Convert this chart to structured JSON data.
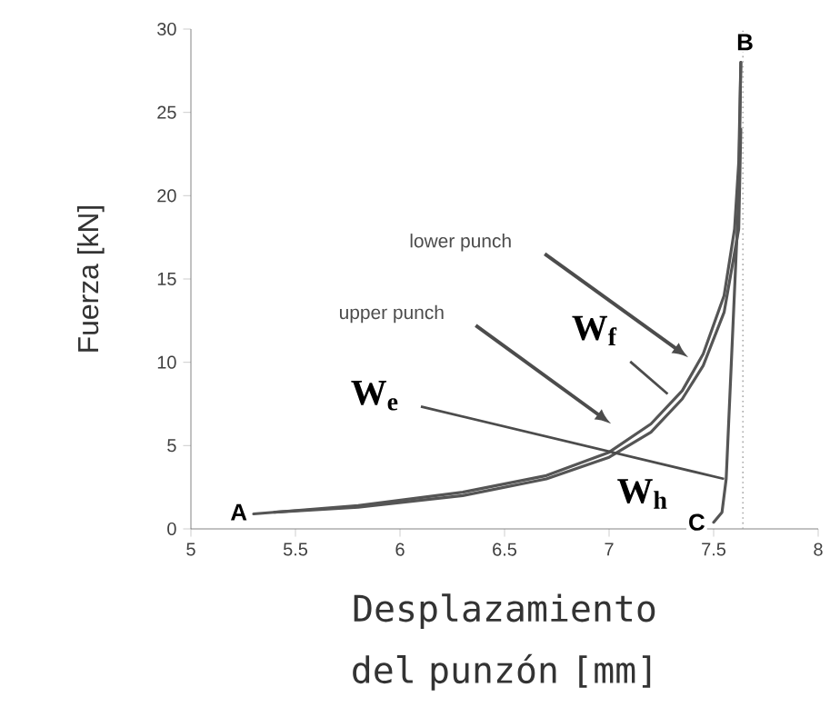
{
  "chart_data": {
    "type": "line",
    "xlabel": "Desplazamiento del punzón [mm]",
    "ylabel": "Fuerza [kN]",
    "xlim": [
      5,
      8
    ],
    "ylim": [
      0,
      30
    ],
    "xticks": [
      5,
      5.5,
      6,
      6.5,
      7,
      7.5,
      8
    ],
    "yticks": [
      0,
      5,
      10,
      15,
      20,
      25,
      30
    ],
    "grid": false,
    "line_style": "solid",
    "marker": "none",
    "series": [
      {
        "color": "#555555",
        "x": [
          5.3,
          5.8,
          6.3,
          6.7,
          7.0,
          7.2,
          7.35,
          7.45,
          7.55,
          7.6,
          7.62,
          7.63
        ],
        "values": [
          0.9,
          1.4,
          2.2,
          3.2,
          4.6,
          6.3,
          8.3,
          10.5,
          14,
          18,
          22,
          28
        ]
      },
      {
        "color": "#555555",
        "x": [
          5.4,
          5.8,
          6.3,
          6.7,
          7.0,
          7.2,
          7.35,
          7.45,
          7.55,
          7.62,
          7.63
        ],
        "values": [
          1,
          1.3,
          2.0,
          3.0,
          4.3,
          5.8,
          7.8,
          9.8,
          13,
          18,
          24
        ]
      },
      {
        "color": "#555555",
        "x": [
          7.63,
          7.62,
          7.56,
          7.54,
          7.5
        ],
        "values": [
          28,
          20,
          3,
          1,
          0.4
        ]
      }
    ],
    "ref_lines": [
      {
        "axis": "x",
        "value": 7.64,
        "color": "#aaaaaa",
        "line_style": "dotted"
      }
    ],
    "annotations": [
      {
        "text": "A",
        "x": 5.3,
        "y": 1
      },
      {
        "text": "B",
        "x": 7.63,
        "y": 28
      },
      {
        "text": "C",
        "x": 7.5,
        "y": 0.4
      },
      "lower punch",
      "upper punch",
      {
        "text": "W$_{f}$",
        "x": 7.28,
        "y": 8.1
      },
      {
        "text": "W$_{e}$",
        "x": 7.55,
        "y": 3.0
      },
      "W$_{h}$"
    ]
  }
}
